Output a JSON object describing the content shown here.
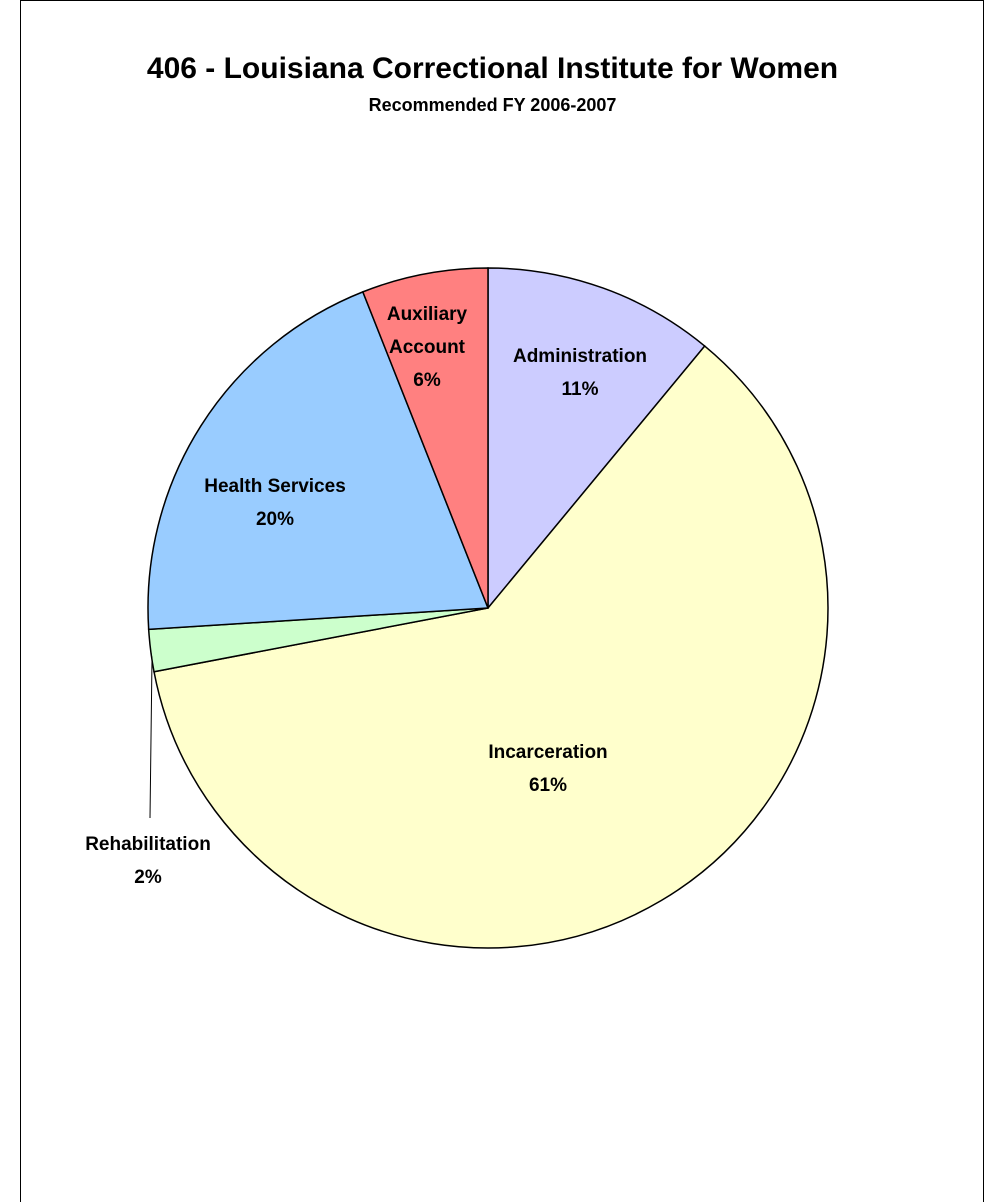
{
  "chart_data": {
    "type": "pie",
    "title": "406 - Louisiana Correctional Institute for Women",
    "subtitle": "Recommended FY 2006-2007",
    "slices": [
      {
        "label": "Administration",
        "value": 11,
        "pct_label": "11%",
        "color": "#CCCCFF",
        "label_lines": [
          "Administration"
        ]
      },
      {
        "label": "Incarceration",
        "value": 61,
        "pct_label": "61%",
        "color": "#FFFFCC",
        "label_lines": [
          "Incarceration"
        ]
      },
      {
        "label": "Rehabilitation",
        "value": 2,
        "pct_label": "2%",
        "color": "#CCFFCC",
        "label_lines": [
          "Rehabilitation"
        ]
      },
      {
        "label": "Health Services",
        "value": 20,
        "pct_label": "20%",
        "color": "#99CCFF",
        "label_lines": [
          "Health Services"
        ]
      },
      {
        "label": "Auxiliary Account",
        "value": 6,
        "pct_label": "6%",
        "color": "#FF8080",
        "label_lines": [
          "Auxiliary",
          "Account"
        ]
      }
    ],
    "legend": "none"
  }
}
